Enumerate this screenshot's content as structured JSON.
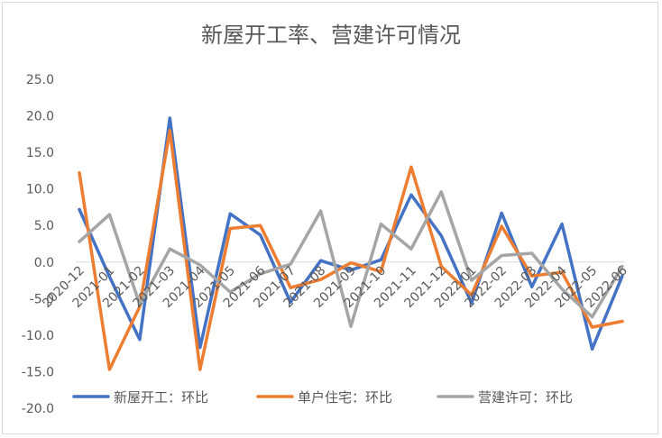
{
  "chart_data": {
    "type": "line",
    "title": "新屋开工率、营建许可情况",
    "xlabel": "",
    "ylabel": "",
    "ylim": [
      -20,
      25
    ],
    "yticks": [
      "25.0",
      "20.0",
      "15.0",
      "10.0",
      "5.0",
      "0.0",
      "-5.0",
      "-10.0",
      "-15.0",
      "-20.0"
    ],
    "ytick_values": [
      25,
      20,
      15,
      10,
      5,
      0,
      -5,
      -10,
      -15,
      -20
    ],
    "legend_position": "bottom",
    "grid": false,
    "x": [
      "2020-12",
      "2021-01",
      "2021-02",
      "2021-03",
      "2021-04",
      "2021-05",
      "2021-06",
      "2021-07",
      "2021-08",
      "2021-09",
      "2021-10",
      "2021-11",
      "2021-12",
      "2022-01",
      "2022-02",
      "2022-03",
      "2022-04",
      "2022-05",
      "2022-06"
    ],
    "xtick_labels": [
      "2020-12",
      "2021-01",
      "2021-02",
      "2021-03",
      "2021-04",
      "2021-05",
      "2021-06",
      "2021-07",
      "2021-08",
      "2021-09",
      "2021-10",
      "2021-11",
      "2021-12",
      "2022-01",
      "2022-02",
      "2022-03",
      "2022-04",
      "2022-05",
      "2022-06"
    ],
    "series": [
      {
        "name": "新屋开工：环比",
        "color": "#4472c4",
        "values": [
          7.2,
          -2.0,
          -10.6,
          19.7,
          -11.7,
          6.6,
          3.7,
          -5.5,
          0.2,
          -1.1,
          0.3,
          9.2,
          3.6,
          -5.6,
          6.7,
          -3.4,
          5.2,
          -11.9,
          -1.9
        ]
      },
      {
        "name": "单户住宅：环比",
        "color": "#ed7d31",
        "values": [
          12.2,
          -14.7,
          -6.1,
          18.0,
          -14.7,
          4.6,
          5.0,
          -3.5,
          -2.4,
          -0.1,
          -1.3,
          13.0,
          -0.6,
          -4.5,
          4.9,
          -1.9,
          -1.4,
          -8.9,
          -8.1
        ]
      },
      {
        "name": "营建许可：环比",
        "color": "#a5a5a5",
        "values": [
          2.8,
          6.5,
          -5.8,
          1.8,
          -0.4,
          -4.1,
          -1.6,
          -0.3,
          7.0,
          -8.8,
          5.2,
          1.8,
          9.6,
          -2.5,
          0.9,
          1.2,
          -3.7,
          -7.5,
          -0.6
        ]
      }
    ]
  }
}
